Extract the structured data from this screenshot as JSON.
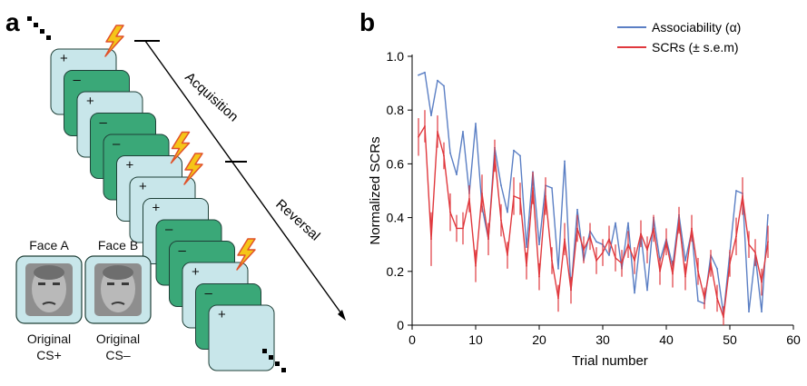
{
  "panel_a": {
    "panel_label": "a",
    "phase_labels": [
      "Acquisition",
      "Reversal"
    ],
    "card_signs": [
      "+",
      "–",
      "+",
      "–",
      "–",
      "+",
      "+",
      "+",
      "–",
      "–",
      "+",
      "–",
      "+"
    ],
    "shock_on_cards": [
      0,
      5,
      6,
      10
    ],
    "faces": [
      {
        "label": "Face A",
        "caption_line1": "Original",
        "caption_line2": "CS+"
      },
      {
        "label": "Face B",
        "caption_line1": "Original",
        "caption_line2": "CS–"
      }
    ],
    "colors": {
      "cs_plus": "#c8e6ea",
      "cs_minus": "#3aa878",
      "shock": "#f5c518",
      "shock_edge": "#e0522a"
    }
  },
  "panel_b": {
    "panel_label": "b"
  },
  "chart_data": {
    "type": "line",
    "xlabel": "Trial number",
    "ylabel": "Normalized SCRs",
    "xlim": [
      0,
      60
    ],
    "ylim": [
      0,
      1.0
    ],
    "xticks": [
      0,
      10,
      20,
      30,
      40,
      50,
      60
    ],
    "yticks": [
      0,
      0.2,
      0.4,
      0.6,
      0.8,
      1.0
    ],
    "ytick_labels": [
      "0",
      "0.2",
      "0.4",
      "0.6",
      "0.8",
      "1.0"
    ],
    "legend": "top-right",
    "x": [
      1,
      2,
      3,
      4,
      5,
      6,
      7,
      8,
      9,
      10,
      11,
      12,
      13,
      14,
      15,
      16,
      17,
      18,
      19,
      20,
      21,
      22,
      23,
      24,
      25,
      26,
      27,
      28,
      29,
      30,
      31,
      32,
      33,
      34,
      35,
      36,
      37,
      38,
      39,
      40,
      41,
      42,
      43,
      44,
      45,
      46,
      47,
      48,
      49,
      50,
      51,
      52,
      53,
      54,
      55,
      56
    ],
    "series": [
      {
        "name": "Associability (α)",
        "color": "#5b7fc4",
        "values": [
          0.93,
          0.94,
          0.78,
          0.91,
          0.89,
          0.64,
          0.56,
          0.72,
          0.49,
          0.75,
          0.44,
          0.32,
          0.66,
          0.52,
          0.42,
          0.65,
          0.63,
          0.29,
          0.57,
          0.3,
          0.52,
          0.51,
          0.21,
          0.61,
          0.13,
          0.43,
          0.24,
          0.35,
          0.31,
          0.3,
          0.26,
          0.38,
          0.21,
          0.38,
          0.12,
          0.34,
          0.13,
          0.4,
          0.24,
          0.32,
          0.22,
          0.41,
          0.24,
          0.35,
          0.09,
          0.08,
          0.26,
          0.21,
          0.04,
          0.27,
          0.5,
          0.49,
          0.05,
          0.26,
          0.05,
          0.41
        ]
      },
      {
        "name": "SCRs (± s.e.m)",
        "color": "#e0393e",
        "values": [
          0.7,
          0.74,
          0.32,
          0.72,
          0.63,
          0.42,
          0.36,
          0.36,
          0.47,
          0.22,
          0.49,
          0.32,
          0.63,
          0.39,
          0.26,
          0.48,
          0.47,
          0.22,
          0.51,
          0.18,
          0.48,
          0.24,
          0.1,
          0.32,
          0.13,
          0.36,
          0.28,
          0.33,
          0.24,
          0.27,
          0.32,
          0.25,
          0.23,
          0.3,
          0.24,
          0.34,
          0.28,
          0.36,
          0.2,
          0.31,
          0.19,
          0.39,
          0.18,
          0.36,
          0.2,
          0.1,
          0.23,
          0.1,
          0.03,
          0.23,
          0.33,
          0.48,
          0.3,
          0.27,
          0.16,
          0.31
        ],
        "error": [
          0.07,
          0.06,
          0.1,
          0.06,
          0.05,
          0.07,
          0.05,
          0.06,
          0.05,
          0.06,
          0.07,
          0.06,
          0.06,
          0.06,
          0.05,
          0.07,
          0.06,
          0.05,
          0.06,
          0.05,
          0.07,
          0.05,
          0.05,
          0.06,
          0.05,
          0.05,
          0.05,
          0.05,
          0.05,
          0.05,
          0.05,
          0.05,
          0.05,
          0.05,
          0.05,
          0.05,
          0.05,
          0.05,
          0.05,
          0.05,
          0.05,
          0.05,
          0.05,
          0.05,
          0.05,
          0.04,
          0.05,
          0.05,
          0.04,
          0.05,
          0.07,
          0.07,
          0.05,
          0.05,
          0.05,
          0.06
        ]
      }
    ]
  }
}
